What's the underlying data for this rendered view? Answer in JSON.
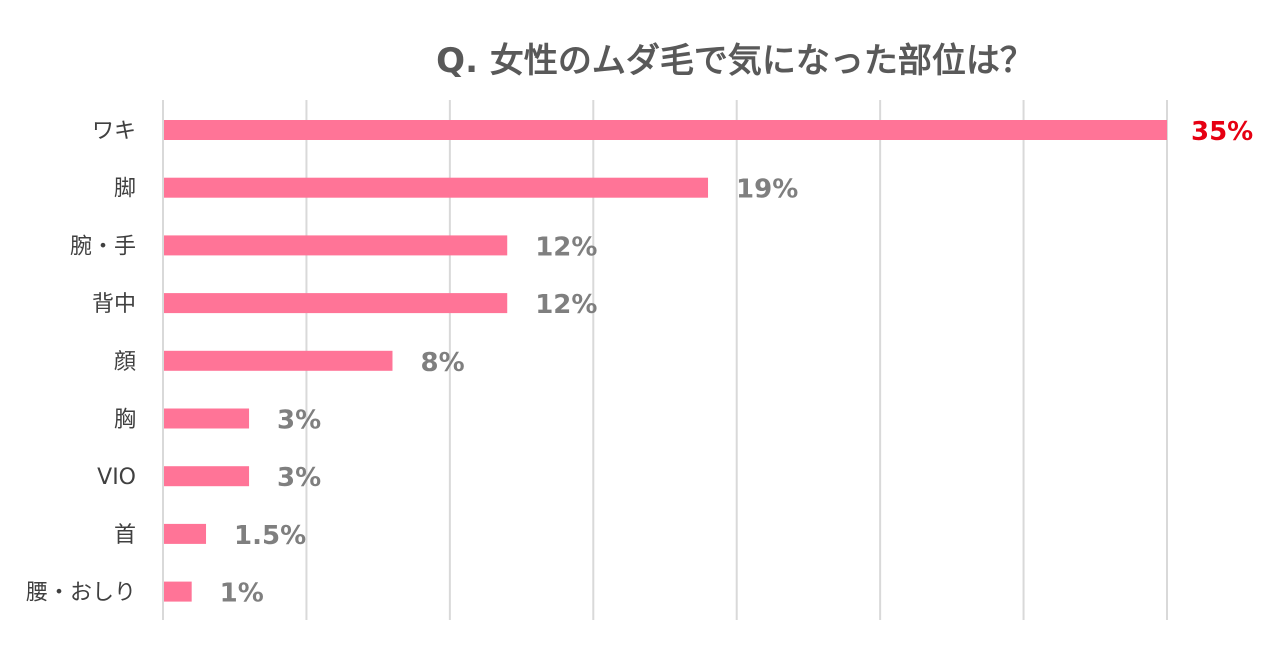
{
  "chart_data": {
    "type": "bar",
    "orientation": "horizontal",
    "title": "Q. 女性のムダ毛で気になった部位は？",
    "categories": [
      "ワキ",
      "脚",
      "腕・手",
      "背中",
      "顔",
      "胸",
      "VIO",
      "首",
      "腰・おしり"
    ],
    "values": [
      35,
      19,
      12,
      12,
      8,
      3,
      3,
      1.5,
      1
    ],
    "value_labels": [
      "35%",
      "19%",
      "12%",
      "12%",
      "8%",
      "3%",
      "3%",
      "1.5%",
      "1%"
    ],
    "xlim": [
      0,
      35
    ],
    "grid": true,
    "highlight_index": 0,
    "colors": {
      "bar": "#ff7497",
      "highlight_label": "#e60012",
      "label": "#7f7f7f",
      "grid": "#d9d9d9",
      "title": "#595959"
    }
  }
}
